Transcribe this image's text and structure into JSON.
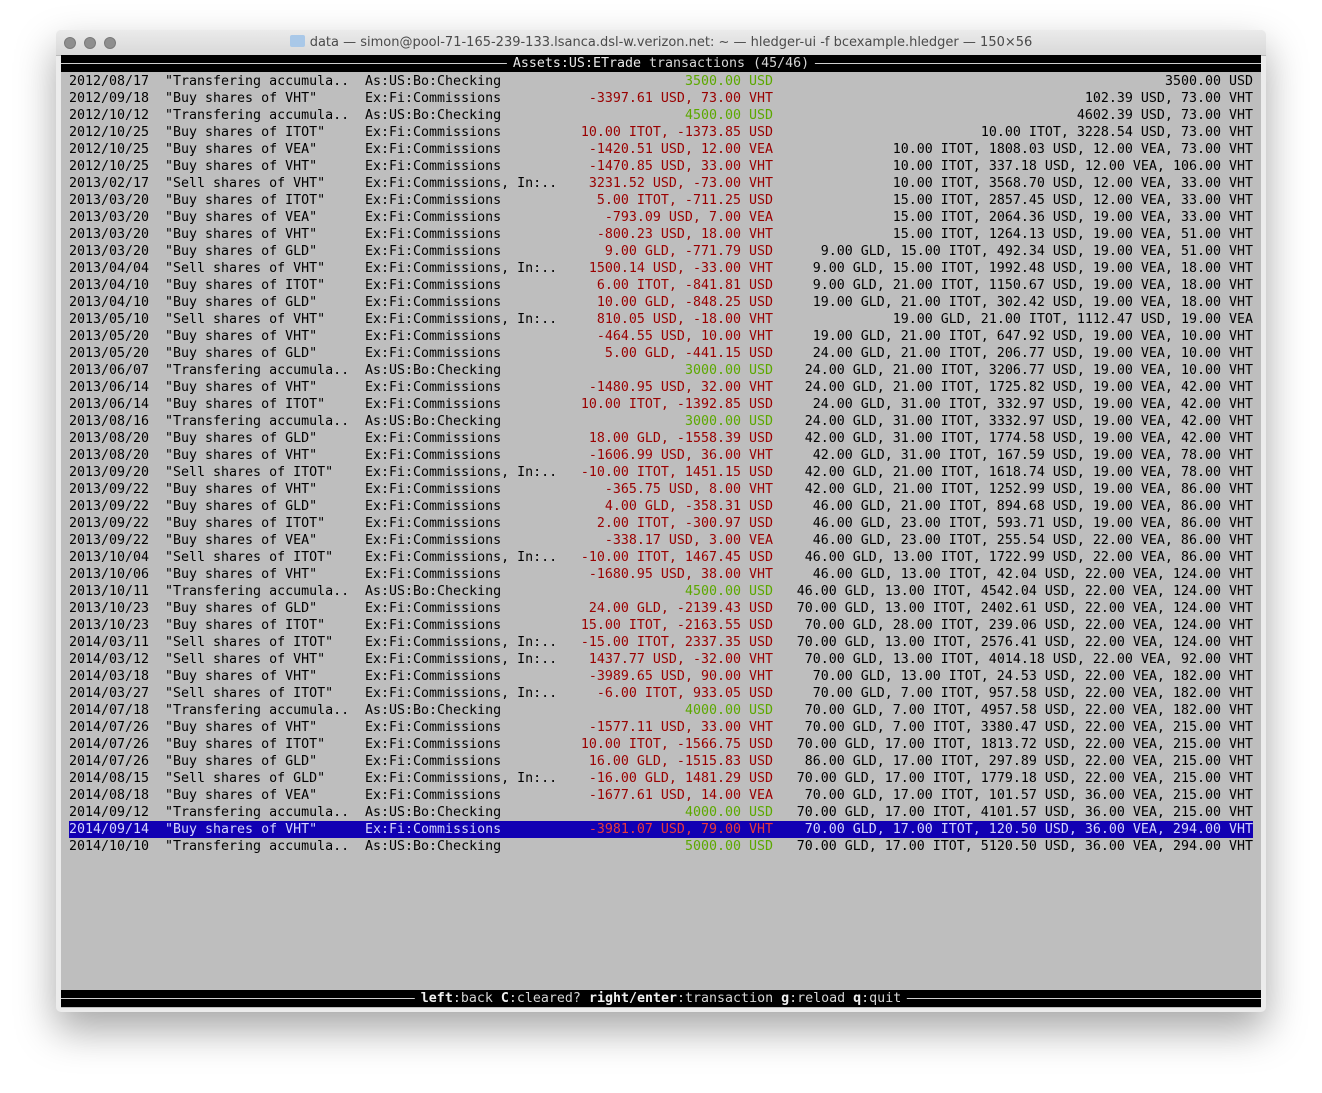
{
  "window": {
    "title": "data — simon@pool-71-165-239-133.lsanca.dsl-w.verizon.net: ~ — hledger-ui -f bcexample.hledger — 150×56"
  },
  "header": {
    "account": "Assets:US:ETrade",
    "suffix": " transactions (45/46)"
  },
  "colors": {
    "background": "#bebebe",
    "positive": "#5ca800",
    "negative": "#990000",
    "selected": "#1100b3"
  },
  "selected_index": 44,
  "rows": [
    [
      "2012/08/17",
      "\"Transfering accumula..",
      "As:US:Bo:Checking",
      "3500.00 USD",
      "3500.00 USD",
      true
    ],
    [
      "2012/09/18",
      "\"Buy shares of VHT\"",
      "Ex:Fi:Commissions",
      "-3397.61 USD, 73.00 VHT",
      "102.39 USD, 73.00 VHT",
      false
    ],
    [
      "2012/10/12",
      "\"Transfering accumula..",
      "As:US:Bo:Checking",
      "4500.00 USD",
      "4602.39 USD, 73.00 VHT",
      true
    ],
    [
      "2012/10/25",
      "\"Buy shares of ITOT\"",
      "Ex:Fi:Commissions",
      "10.00 ITOT, -1373.85 USD",
      "10.00 ITOT, 3228.54 USD, 73.00 VHT",
      false
    ],
    [
      "2012/10/25",
      "\"Buy shares of VEA\"",
      "Ex:Fi:Commissions",
      "-1420.51 USD, 12.00 VEA",
      "10.00 ITOT, 1808.03 USD, 12.00 VEA, 73.00 VHT",
      false
    ],
    [
      "2012/10/25",
      "\"Buy shares of VHT\"",
      "Ex:Fi:Commissions",
      "-1470.85 USD, 33.00 VHT",
      "10.00 ITOT, 337.18 USD, 12.00 VEA, 106.00 VHT",
      false
    ],
    [
      "2013/02/17",
      "\"Sell shares of VHT\"",
      "Ex:Fi:Commissions, In:..",
      "3231.52 USD, -73.00 VHT",
      "10.00 ITOT, 3568.70 USD, 12.00 VEA, 33.00 VHT",
      false
    ],
    [
      "2013/03/20",
      "\"Buy shares of ITOT\"",
      "Ex:Fi:Commissions",
      "5.00 ITOT, -711.25 USD",
      "15.00 ITOT, 2857.45 USD, 12.00 VEA, 33.00 VHT",
      false
    ],
    [
      "2013/03/20",
      "\"Buy shares of VEA\"",
      "Ex:Fi:Commissions",
      "-793.09 USD, 7.00 VEA",
      "15.00 ITOT, 2064.36 USD, 19.00 VEA, 33.00 VHT",
      false
    ],
    [
      "2013/03/20",
      "\"Buy shares of VHT\"",
      "Ex:Fi:Commissions",
      "-800.23 USD, 18.00 VHT",
      "15.00 ITOT, 1264.13 USD, 19.00 VEA, 51.00 VHT",
      false
    ],
    [
      "2013/03/20",
      "\"Buy shares of GLD\"",
      "Ex:Fi:Commissions",
      "9.00 GLD, -771.79 USD",
      "9.00 GLD, 15.00 ITOT, 492.34 USD, 19.00 VEA, 51.00 VHT",
      false
    ],
    [
      "2013/04/04",
      "\"Sell shares of VHT\"",
      "Ex:Fi:Commissions, In:..",
      "1500.14 USD, -33.00 VHT",
      "9.00 GLD, 15.00 ITOT, 1992.48 USD, 19.00 VEA, 18.00 VHT",
      false
    ],
    [
      "2013/04/10",
      "\"Buy shares of ITOT\"",
      "Ex:Fi:Commissions",
      "6.00 ITOT, -841.81 USD",
      "9.00 GLD, 21.00 ITOT, 1150.67 USD, 19.00 VEA, 18.00 VHT",
      false
    ],
    [
      "2013/04/10",
      "\"Buy shares of GLD\"",
      "Ex:Fi:Commissions",
      "10.00 GLD, -848.25 USD",
      "19.00 GLD, 21.00 ITOT, 302.42 USD, 19.00 VEA, 18.00 VHT",
      false
    ],
    [
      "2013/05/10",
      "\"Sell shares of VHT\"",
      "Ex:Fi:Commissions, In:..",
      "810.05 USD, -18.00 VHT",
      "19.00 GLD, 21.00 ITOT, 1112.47 USD, 19.00 VEA",
      false
    ],
    [
      "2013/05/20",
      "\"Buy shares of VHT\"",
      "Ex:Fi:Commissions",
      "-464.55 USD, 10.00 VHT",
      "19.00 GLD, 21.00 ITOT, 647.92 USD, 19.00 VEA, 10.00 VHT",
      false
    ],
    [
      "2013/05/20",
      "\"Buy shares of GLD\"",
      "Ex:Fi:Commissions",
      "5.00 GLD, -441.15 USD",
      "24.00 GLD, 21.00 ITOT, 206.77 USD, 19.00 VEA, 10.00 VHT",
      false
    ],
    [
      "2013/06/07",
      "\"Transfering accumula..",
      "As:US:Bo:Checking",
      "3000.00 USD",
      "24.00 GLD, 21.00 ITOT, 3206.77 USD, 19.00 VEA, 10.00 VHT",
      true
    ],
    [
      "2013/06/14",
      "\"Buy shares of VHT\"",
      "Ex:Fi:Commissions",
      "-1480.95 USD, 32.00 VHT",
      "24.00 GLD, 21.00 ITOT, 1725.82 USD, 19.00 VEA, 42.00 VHT",
      false
    ],
    [
      "2013/06/14",
      "\"Buy shares of ITOT\"",
      "Ex:Fi:Commissions",
      "10.00 ITOT, -1392.85 USD",
      "24.00 GLD, 31.00 ITOT, 332.97 USD, 19.00 VEA, 42.00 VHT",
      false
    ],
    [
      "2013/08/16",
      "\"Transfering accumula..",
      "As:US:Bo:Checking",
      "3000.00 USD",
      "24.00 GLD, 31.00 ITOT, 3332.97 USD, 19.00 VEA, 42.00 VHT",
      true
    ],
    [
      "2013/08/20",
      "\"Buy shares of GLD\"",
      "Ex:Fi:Commissions",
      "18.00 GLD, -1558.39 USD",
      "42.00 GLD, 31.00 ITOT, 1774.58 USD, 19.00 VEA, 42.00 VHT",
      false
    ],
    [
      "2013/08/20",
      "\"Buy shares of VHT\"",
      "Ex:Fi:Commissions",
      "-1606.99 USD, 36.00 VHT",
      "42.00 GLD, 31.00 ITOT, 167.59 USD, 19.00 VEA, 78.00 VHT",
      false
    ],
    [
      "2013/09/20",
      "\"Sell shares of ITOT\"",
      "Ex:Fi:Commissions, In:..",
      "-10.00 ITOT, 1451.15 USD",
      "42.00 GLD, 21.00 ITOT, 1618.74 USD, 19.00 VEA, 78.00 VHT",
      false
    ],
    [
      "2013/09/22",
      "\"Buy shares of VHT\"",
      "Ex:Fi:Commissions",
      "-365.75 USD, 8.00 VHT",
      "42.00 GLD, 21.00 ITOT, 1252.99 USD, 19.00 VEA, 86.00 VHT",
      false
    ],
    [
      "2013/09/22",
      "\"Buy shares of GLD\"",
      "Ex:Fi:Commissions",
      "4.00 GLD, -358.31 USD",
      "46.00 GLD, 21.00 ITOT, 894.68 USD, 19.00 VEA, 86.00 VHT",
      false
    ],
    [
      "2013/09/22",
      "\"Buy shares of ITOT\"",
      "Ex:Fi:Commissions",
      "2.00 ITOT, -300.97 USD",
      "46.00 GLD, 23.00 ITOT, 593.71 USD, 19.00 VEA, 86.00 VHT",
      false
    ],
    [
      "2013/09/22",
      "\"Buy shares of VEA\"",
      "Ex:Fi:Commissions",
      "-338.17 USD, 3.00 VEA",
      "46.00 GLD, 23.00 ITOT, 255.54 USD, 22.00 VEA, 86.00 VHT",
      false
    ],
    [
      "2013/10/04",
      "\"Sell shares of ITOT\"",
      "Ex:Fi:Commissions, In:..",
      "-10.00 ITOT, 1467.45 USD",
      "46.00 GLD, 13.00 ITOT, 1722.99 USD, 22.00 VEA, 86.00 VHT",
      false
    ],
    [
      "2013/10/06",
      "\"Buy shares of VHT\"",
      "Ex:Fi:Commissions",
      "-1680.95 USD, 38.00 VHT",
      "46.00 GLD, 13.00 ITOT, 42.04 USD, 22.00 VEA, 124.00 VHT",
      false
    ],
    [
      "2013/10/11",
      "\"Transfering accumula..",
      "As:US:Bo:Checking",
      "4500.00 USD",
      "46.00 GLD, 13.00 ITOT, 4542.04 USD, 22.00 VEA, 124.00 VHT",
      true
    ],
    [
      "2013/10/23",
      "\"Buy shares of GLD\"",
      "Ex:Fi:Commissions",
      "24.00 GLD, -2139.43 USD",
      "70.00 GLD, 13.00 ITOT, 2402.61 USD, 22.00 VEA, 124.00 VHT",
      false
    ],
    [
      "2013/10/23",
      "\"Buy shares of ITOT\"",
      "Ex:Fi:Commissions",
      "15.00 ITOT, -2163.55 USD",
      "70.00 GLD, 28.00 ITOT, 239.06 USD, 22.00 VEA, 124.00 VHT",
      false
    ],
    [
      "2014/03/11",
      "\"Sell shares of ITOT\"",
      "Ex:Fi:Commissions, In:..",
      "-15.00 ITOT, 2337.35 USD",
      "70.00 GLD, 13.00 ITOT, 2576.41 USD, 22.00 VEA, 124.00 VHT",
      false
    ],
    [
      "2014/03/12",
      "\"Sell shares of VHT\"",
      "Ex:Fi:Commissions, In:..",
      "1437.77 USD, -32.00 VHT",
      "70.00 GLD, 13.00 ITOT, 4014.18 USD, 22.00 VEA, 92.00 VHT",
      false
    ],
    [
      "2014/03/18",
      "\"Buy shares of VHT\"",
      "Ex:Fi:Commissions",
      "-3989.65 USD, 90.00 VHT",
      "70.00 GLD, 13.00 ITOT, 24.53 USD, 22.00 VEA, 182.00 VHT",
      false
    ],
    [
      "2014/03/27",
      "\"Sell shares of ITOT\"",
      "Ex:Fi:Commissions, In:..",
      "-6.00 ITOT, 933.05 USD",
      "70.00 GLD, 7.00 ITOT, 957.58 USD, 22.00 VEA, 182.00 VHT",
      false
    ],
    [
      "2014/07/18",
      "\"Transfering accumula..",
      "As:US:Bo:Checking",
      "4000.00 USD",
      "70.00 GLD, 7.00 ITOT, 4957.58 USD, 22.00 VEA, 182.00 VHT",
      true
    ],
    [
      "2014/07/26",
      "\"Buy shares of VHT\"",
      "Ex:Fi:Commissions",
      "-1577.11 USD, 33.00 VHT",
      "70.00 GLD, 7.00 ITOT, 3380.47 USD, 22.00 VEA, 215.00 VHT",
      false
    ],
    [
      "2014/07/26",
      "\"Buy shares of ITOT\"",
      "Ex:Fi:Commissions",
      "10.00 ITOT, -1566.75 USD",
      "70.00 GLD, 17.00 ITOT, 1813.72 USD, 22.00 VEA, 215.00 VHT",
      false
    ],
    [
      "2014/07/26",
      "\"Buy shares of GLD\"",
      "Ex:Fi:Commissions",
      "16.00 GLD, -1515.83 USD",
      "86.00 GLD, 17.00 ITOT, 297.89 USD, 22.00 VEA, 215.00 VHT",
      false
    ],
    [
      "2014/08/15",
      "\"Sell shares of GLD\"",
      "Ex:Fi:Commissions, In:..",
      "-16.00 GLD, 1481.29 USD",
      "70.00 GLD, 17.00 ITOT, 1779.18 USD, 22.00 VEA, 215.00 VHT",
      false
    ],
    [
      "2014/08/18",
      "\"Buy shares of VEA\"",
      "Ex:Fi:Commissions",
      "-1677.61 USD, 14.00 VEA",
      "70.00 GLD, 17.00 ITOT, 101.57 USD, 36.00 VEA, 215.00 VHT",
      false
    ],
    [
      "2014/09/12",
      "\"Transfering accumula..",
      "As:US:Bo:Checking",
      "4000.00 USD",
      "70.00 GLD, 17.00 ITOT, 4101.57 USD, 36.00 VEA, 215.00 VHT",
      true
    ],
    [
      "2014/09/14",
      "\"Buy shares of VHT\"",
      "Ex:Fi:Commissions",
      "-3981.07 USD, 79.00 VHT",
      "70.00 GLD, 17.00 ITOT, 120.50 USD, 36.00 VEA, 294.00 VHT",
      false
    ],
    [
      "2014/10/10",
      "\"Transfering accumula..",
      "As:US:Bo:Checking",
      "5000.00 USD",
      "70.00 GLD, 17.00 ITOT, 5120.50 USD, 36.00 VEA, 294.00 VHT",
      true
    ]
  ],
  "footer": [
    {
      "key": "left",
      "desc": ":back "
    },
    {
      "key": "C",
      "desc": ":cleared? "
    },
    {
      "key": "right/enter",
      "desc": ":transaction "
    },
    {
      "key": "g",
      "desc": ":reload "
    },
    {
      "key": "q",
      "desc": ":quit"
    }
  ]
}
